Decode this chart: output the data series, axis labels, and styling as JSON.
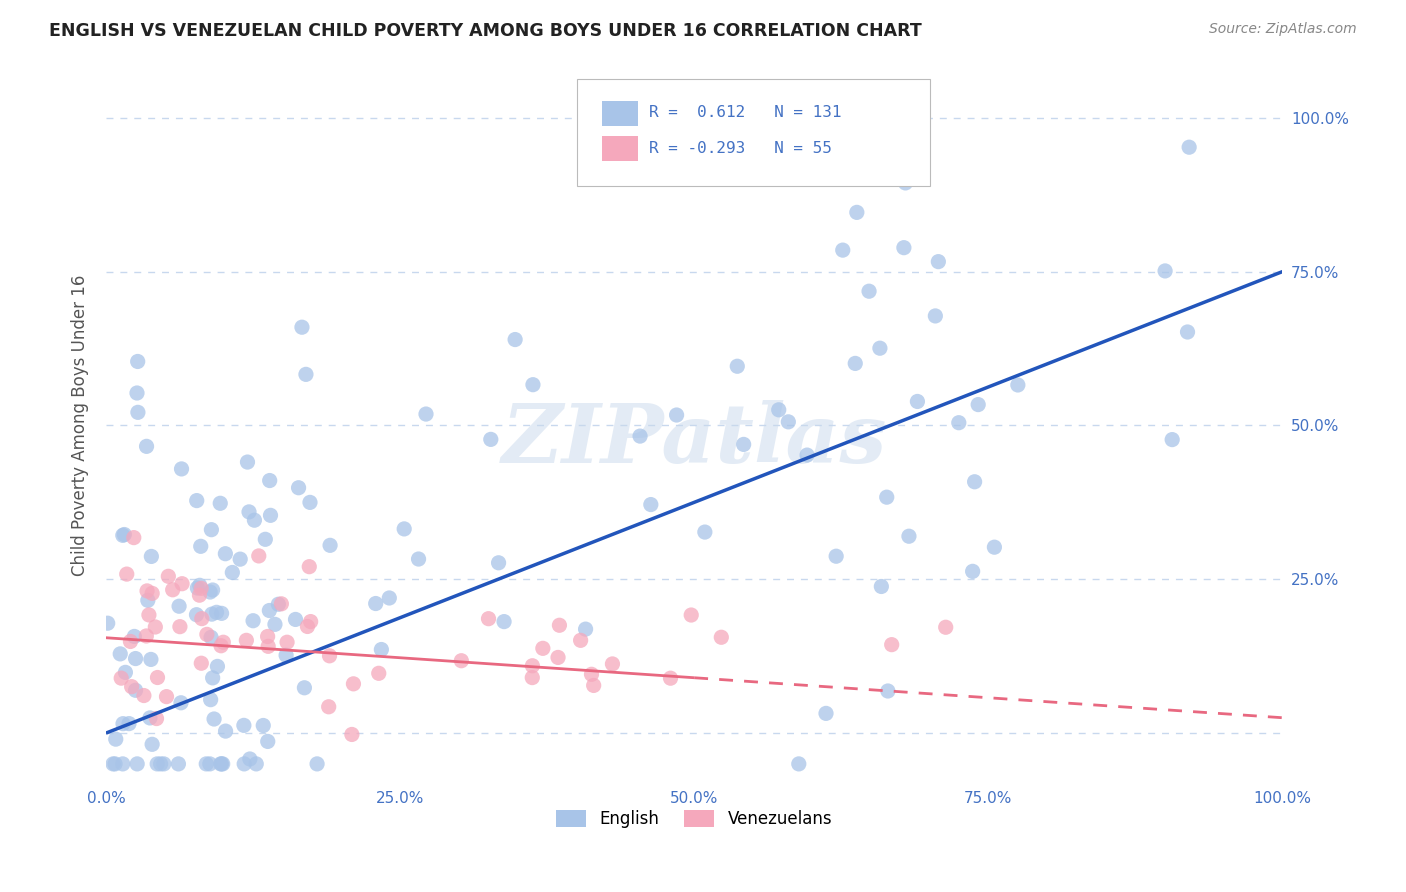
{
  "title": "ENGLISH VS VENEZUELAN CHILD POVERTY AMONG BOYS UNDER 16 CORRELATION CHART",
  "source": "Source: ZipAtlas.com",
  "ylabel": "Child Poverty Among Boys Under 16",
  "xlim": [
    0.0,
    1.0
  ],
  "ylim": [
    -0.08,
    1.08
  ],
  "xticks": [
    0.0,
    0.25,
    0.5,
    0.75,
    1.0
  ],
  "xtick_labels": [
    "0.0%",
    "25.0%",
    "50.0%",
    "75.0%",
    "100.0%"
  ],
  "yticks": [
    0.0,
    0.25,
    0.5,
    0.75,
    1.0
  ],
  "ytick_labels": [
    "",
    "25.0%",
    "50.0%",
    "75.0%",
    "100.0%"
  ],
  "english_R": 0.612,
  "english_N": 131,
  "venezuelan_R": -0.293,
  "venezuelan_N": 55,
  "english_color": "#a8c4e8",
  "venezuelan_color": "#f5a8bc",
  "english_line_color": "#2255bb",
  "venezuelan_line_color": "#e86880",
  "title_color": "#222222",
  "axis_label_color": "#4472c4",
  "watermark": "ZIPatlas",
  "background_color": "#ffffff",
  "grid_color": "#c8d8ee",
  "english_seed": 12,
  "venezuelan_seed": 99
}
